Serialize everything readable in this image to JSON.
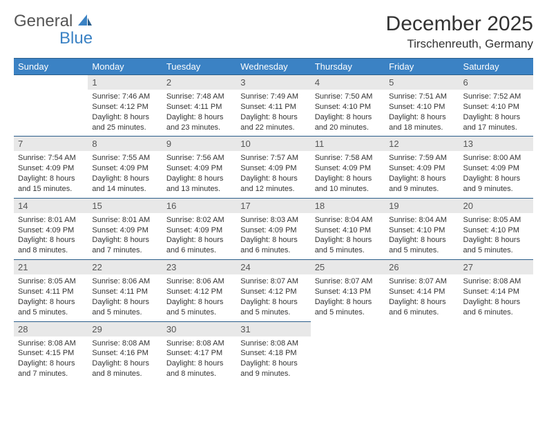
{
  "logo": {
    "text1": "General",
    "text2": "Blue"
  },
  "title": "December 2025",
  "location": "Tirschenreuth, Germany",
  "weekdays": [
    "Sunday",
    "Monday",
    "Tuesday",
    "Wednesday",
    "Thursday",
    "Friday",
    "Saturday"
  ],
  "colors": {
    "header_bg": "#3b82c4",
    "header_border": "#2a5d8a",
    "daynum_bg": "#e8e8e8",
    "text": "#333333",
    "logo_blue": "#3b82c4"
  },
  "weeks": [
    {
      "days": [
        {
          "num": "",
          "lines": []
        },
        {
          "num": "1",
          "lines": [
            "Sunrise: 7:46 AM",
            "Sunset: 4:12 PM",
            "Daylight: 8 hours and 25 minutes."
          ]
        },
        {
          "num": "2",
          "lines": [
            "Sunrise: 7:48 AM",
            "Sunset: 4:11 PM",
            "Daylight: 8 hours and 23 minutes."
          ]
        },
        {
          "num": "3",
          "lines": [
            "Sunrise: 7:49 AM",
            "Sunset: 4:11 PM",
            "Daylight: 8 hours and 22 minutes."
          ]
        },
        {
          "num": "4",
          "lines": [
            "Sunrise: 7:50 AM",
            "Sunset: 4:10 PM",
            "Daylight: 8 hours and 20 minutes."
          ]
        },
        {
          "num": "5",
          "lines": [
            "Sunrise: 7:51 AM",
            "Sunset: 4:10 PM",
            "Daylight: 8 hours and 18 minutes."
          ]
        },
        {
          "num": "6",
          "lines": [
            "Sunrise: 7:52 AM",
            "Sunset: 4:10 PM",
            "Daylight: 8 hours and 17 minutes."
          ]
        }
      ]
    },
    {
      "days": [
        {
          "num": "7",
          "lines": [
            "Sunrise: 7:54 AM",
            "Sunset: 4:09 PM",
            "Daylight: 8 hours and 15 minutes."
          ]
        },
        {
          "num": "8",
          "lines": [
            "Sunrise: 7:55 AM",
            "Sunset: 4:09 PM",
            "Daylight: 8 hours and 14 minutes."
          ]
        },
        {
          "num": "9",
          "lines": [
            "Sunrise: 7:56 AM",
            "Sunset: 4:09 PM",
            "Daylight: 8 hours and 13 minutes."
          ]
        },
        {
          "num": "10",
          "lines": [
            "Sunrise: 7:57 AM",
            "Sunset: 4:09 PM",
            "Daylight: 8 hours and 12 minutes."
          ]
        },
        {
          "num": "11",
          "lines": [
            "Sunrise: 7:58 AM",
            "Sunset: 4:09 PM",
            "Daylight: 8 hours and 10 minutes."
          ]
        },
        {
          "num": "12",
          "lines": [
            "Sunrise: 7:59 AM",
            "Sunset: 4:09 PM",
            "Daylight: 8 hours and 9 minutes."
          ]
        },
        {
          "num": "13",
          "lines": [
            "Sunrise: 8:00 AM",
            "Sunset: 4:09 PM",
            "Daylight: 8 hours and 9 minutes."
          ]
        }
      ]
    },
    {
      "days": [
        {
          "num": "14",
          "lines": [
            "Sunrise: 8:01 AM",
            "Sunset: 4:09 PM",
            "Daylight: 8 hours and 8 minutes."
          ]
        },
        {
          "num": "15",
          "lines": [
            "Sunrise: 8:01 AM",
            "Sunset: 4:09 PM",
            "Daylight: 8 hours and 7 minutes."
          ]
        },
        {
          "num": "16",
          "lines": [
            "Sunrise: 8:02 AM",
            "Sunset: 4:09 PM",
            "Daylight: 8 hours and 6 minutes."
          ]
        },
        {
          "num": "17",
          "lines": [
            "Sunrise: 8:03 AM",
            "Sunset: 4:09 PM",
            "Daylight: 8 hours and 6 minutes."
          ]
        },
        {
          "num": "18",
          "lines": [
            "Sunrise: 8:04 AM",
            "Sunset: 4:10 PM",
            "Daylight: 8 hours and 5 minutes."
          ]
        },
        {
          "num": "19",
          "lines": [
            "Sunrise: 8:04 AM",
            "Sunset: 4:10 PM",
            "Daylight: 8 hours and 5 minutes."
          ]
        },
        {
          "num": "20",
          "lines": [
            "Sunrise: 8:05 AM",
            "Sunset: 4:10 PM",
            "Daylight: 8 hours and 5 minutes."
          ]
        }
      ]
    },
    {
      "days": [
        {
          "num": "21",
          "lines": [
            "Sunrise: 8:05 AM",
            "Sunset: 4:11 PM",
            "Daylight: 8 hours and 5 minutes."
          ]
        },
        {
          "num": "22",
          "lines": [
            "Sunrise: 8:06 AM",
            "Sunset: 4:11 PM",
            "Daylight: 8 hours and 5 minutes."
          ]
        },
        {
          "num": "23",
          "lines": [
            "Sunrise: 8:06 AM",
            "Sunset: 4:12 PM",
            "Daylight: 8 hours and 5 minutes."
          ]
        },
        {
          "num": "24",
          "lines": [
            "Sunrise: 8:07 AM",
            "Sunset: 4:12 PM",
            "Daylight: 8 hours and 5 minutes."
          ]
        },
        {
          "num": "25",
          "lines": [
            "Sunrise: 8:07 AM",
            "Sunset: 4:13 PM",
            "Daylight: 8 hours and 5 minutes."
          ]
        },
        {
          "num": "26",
          "lines": [
            "Sunrise: 8:07 AM",
            "Sunset: 4:14 PM",
            "Daylight: 8 hours and 6 minutes."
          ]
        },
        {
          "num": "27",
          "lines": [
            "Sunrise: 8:08 AM",
            "Sunset: 4:14 PM",
            "Daylight: 8 hours and 6 minutes."
          ]
        }
      ]
    },
    {
      "days": [
        {
          "num": "28",
          "lines": [
            "Sunrise: 8:08 AM",
            "Sunset: 4:15 PM",
            "Daylight: 8 hours and 7 minutes."
          ]
        },
        {
          "num": "29",
          "lines": [
            "Sunrise: 8:08 AM",
            "Sunset: 4:16 PM",
            "Daylight: 8 hours and 8 minutes."
          ]
        },
        {
          "num": "30",
          "lines": [
            "Sunrise: 8:08 AM",
            "Sunset: 4:17 PM",
            "Daylight: 8 hours and 8 minutes."
          ]
        },
        {
          "num": "31",
          "lines": [
            "Sunrise: 8:08 AM",
            "Sunset: 4:18 PM",
            "Daylight: 8 hours and 9 minutes."
          ]
        },
        {
          "num": "",
          "lines": []
        },
        {
          "num": "",
          "lines": []
        },
        {
          "num": "",
          "lines": []
        }
      ]
    }
  ]
}
